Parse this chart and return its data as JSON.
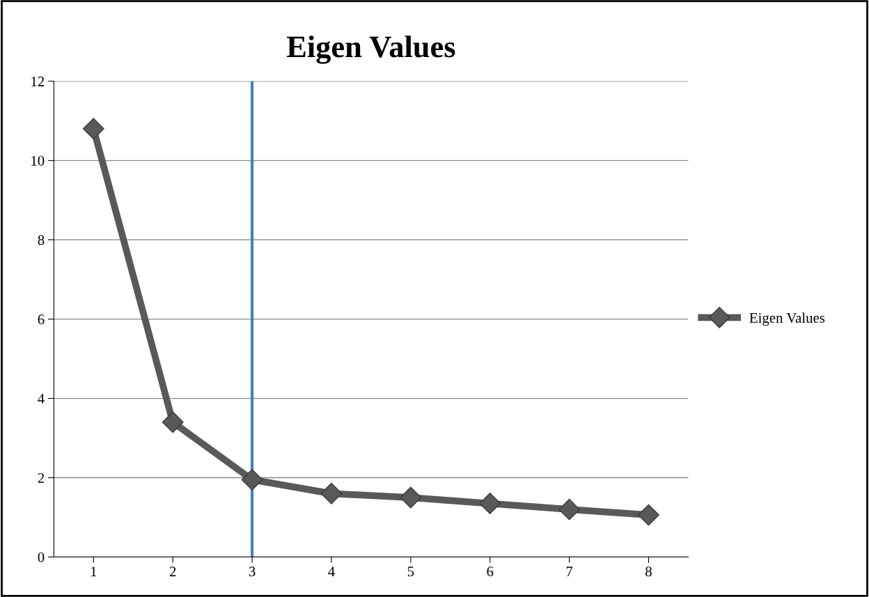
{
  "chart_data": {
    "type": "line",
    "title": "Eigen Values",
    "x": [
      1,
      2,
      3,
      4,
      5,
      6,
      7,
      8
    ],
    "series": [
      {
        "name": "Eigen Values",
        "color": "#595959",
        "values": [
          10.8,
          3.4,
          1.95,
          1.6,
          1.5,
          1.35,
          1.2,
          1.06
        ]
      }
    ],
    "xlim": [
      0.5,
      8.5
    ],
    "xticks": [
      1,
      2,
      3,
      4,
      5,
      6,
      7,
      8
    ],
    "ylim": [
      0,
      12
    ],
    "yticks": [
      0,
      2,
      4,
      6,
      8,
      10,
      12
    ],
    "ref_lines": [
      {
        "axis": "x",
        "value": 3,
        "color": "#4a7ebb"
      }
    ],
    "grid": "y",
    "legend": "right",
    "marker": "diamond",
    "line_style": "solid"
  }
}
